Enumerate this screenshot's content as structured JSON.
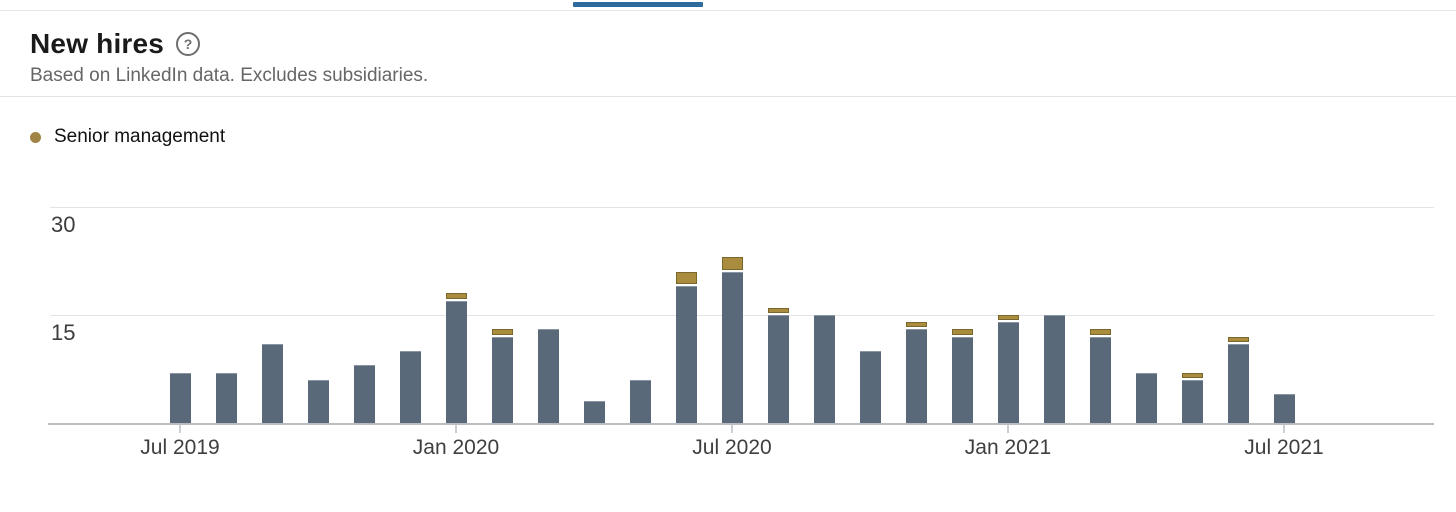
{
  "header": {
    "title": "New hires",
    "help_glyph": "?",
    "subtitle": "Based on LinkedIn data. Excludes subsidiaries."
  },
  "legend": {
    "items": [
      {
        "label": "Senior management",
        "color": "#a08445"
      }
    ]
  },
  "accent_colors": {
    "active_tab_blue": "#2d6a9e",
    "bar_gray": "#5a697a",
    "bar_gold": "#a98c3e"
  },
  "chart_data": {
    "type": "bar",
    "stacked": true,
    "title": "New hires",
    "x": [
      "Jul 2019",
      "Aug 2019",
      "Sep 2019",
      "Oct 2019",
      "Nov 2019",
      "Dec 2019",
      "Jan 2020",
      "Feb 2020",
      "Mar 2020",
      "Apr 2020",
      "May 2020",
      "Jun 2020",
      "Jul 2020",
      "Aug 2020",
      "Sep 2020",
      "Oct 2020",
      "Nov 2020",
      "Dec 2020",
      "Jan 2021",
      "Feb 2021",
      "Mar 2021",
      "Apr 2021",
      "May 2021",
      "Jun 2021",
      "Jul 2021"
    ],
    "series": [
      {
        "name": "",
        "color": "#5a697a",
        "values": [
          7,
          7,
          11,
          6,
          8,
          10,
          17,
          12,
          13,
          3,
          6,
          19,
          21,
          15,
          15,
          10,
          13,
          12,
          14,
          15,
          12,
          7,
          6,
          11,
          4
        ]
      },
      {
        "name": "Senior management",
        "color": "#a98c3e",
        "values": [
          0,
          0,
          0,
          0,
          0,
          0,
          1,
          1,
          0,
          0,
          0,
          2,
          2,
          1,
          0,
          0,
          1,
          1,
          1,
          0,
          1,
          0,
          1,
          1,
          0
        ]
      }
    ],
    "totals": [
      7,
      7,
      11,
      6,
      8,
      10,
      18,
      13,
      13,
      3,
      6,
      21,
      23,
      16,
      15,
      10,
      14,
      13,
      15,
      15,
      13,
      7,
      7,
      12,
      4
    ],
    "ylim": [
      0,
      30
    ],
    "y_ticks": [
      30,
      15
    ],
    "x_tick_labels": [
      "Jul 2019",
      "Jan 2020",
      "Jul 2020",
      "Jan 2021",
      "Jul 2021"
    ],
    "x_tick_every": 6,
    "grid": "horizontal",
    "legend_position": "top-left"
  }
}
